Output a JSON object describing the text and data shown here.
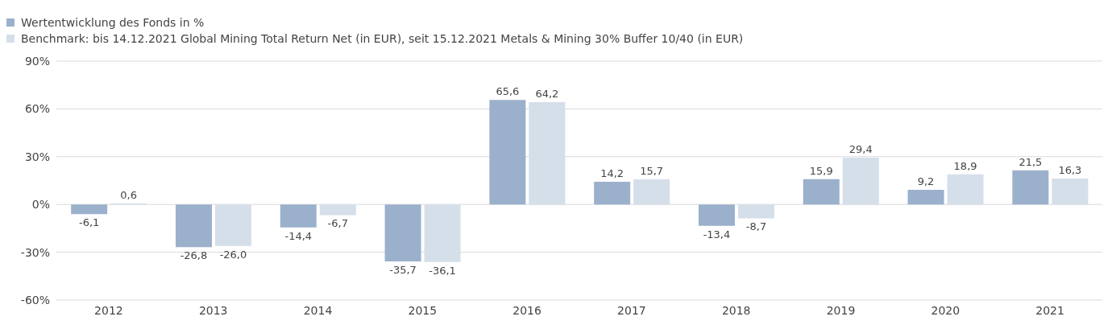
{
  "chart_data": {
    "type": "bar",
    "categories": [
      "2012",
      "2013",
      "2014",
      "2015",
      "2016",
      "2017",
      "2018",
      "2019",
      "2020",
      "2021"
    ],
    "series": [
      {
        "name": "Wertentwicklung des Fonds in %",
        "color": "#9bb0cb",
        "values": [
          -6.1,
          -26.8,
          -14.4,
          -35.7,
          65.6,
          14.2,
          -13.4,
          15.9,
          9.2,
          21.5
        ],
        "value_labels": [
          "-6,1",
          "-26,8",
          "-14,4",
          "-35,7",
          "65,6",
          "14,2",
          "-13,4",
          "15,9",
          "9,2",
          "21,5"
        ]
      },
      {
        "name": "Benchmark: bis 14.12.2021 Global Mining Total Return Net (in EUR), seit 15.12.2021 Metals & Mining 30% Buffer 10/40 (in EUR)",
        "color": "#d5dfea",
        "values": [
          0.6,
          -26.0,
          -6.7,
          -36.1,
          64.2,
          15.7,
          -8.7,
          29.4,
          18.9,
          16.3
        ],
        "value_labels": [
          "0,6",
          "-26,0",
          "-6,7",
          "-36,1",
          "64,2",
          "15,7",
          "-8,7",
          "29,4",
          "18,9",
          "16,3"
        ]
      }
    ],
    "ylim": [
      -60,
      90
    ],
    "yticks": [
      {
        "value": -60,
        "label": "-60%"
      },
      {
        "value": -30,
        "label": "-30%"
      },
      {
        "value": 0,
        "label": "0%"
      },
      {
        "value": 30,
        "label": "30%"
      },
      {
        "value": 60,
        "label": "60%"
      },
      {
        "value": 90,
        "label": "90%"
      }
    ],
    "grid": "y",
    "legend": "top left"
  }
}
